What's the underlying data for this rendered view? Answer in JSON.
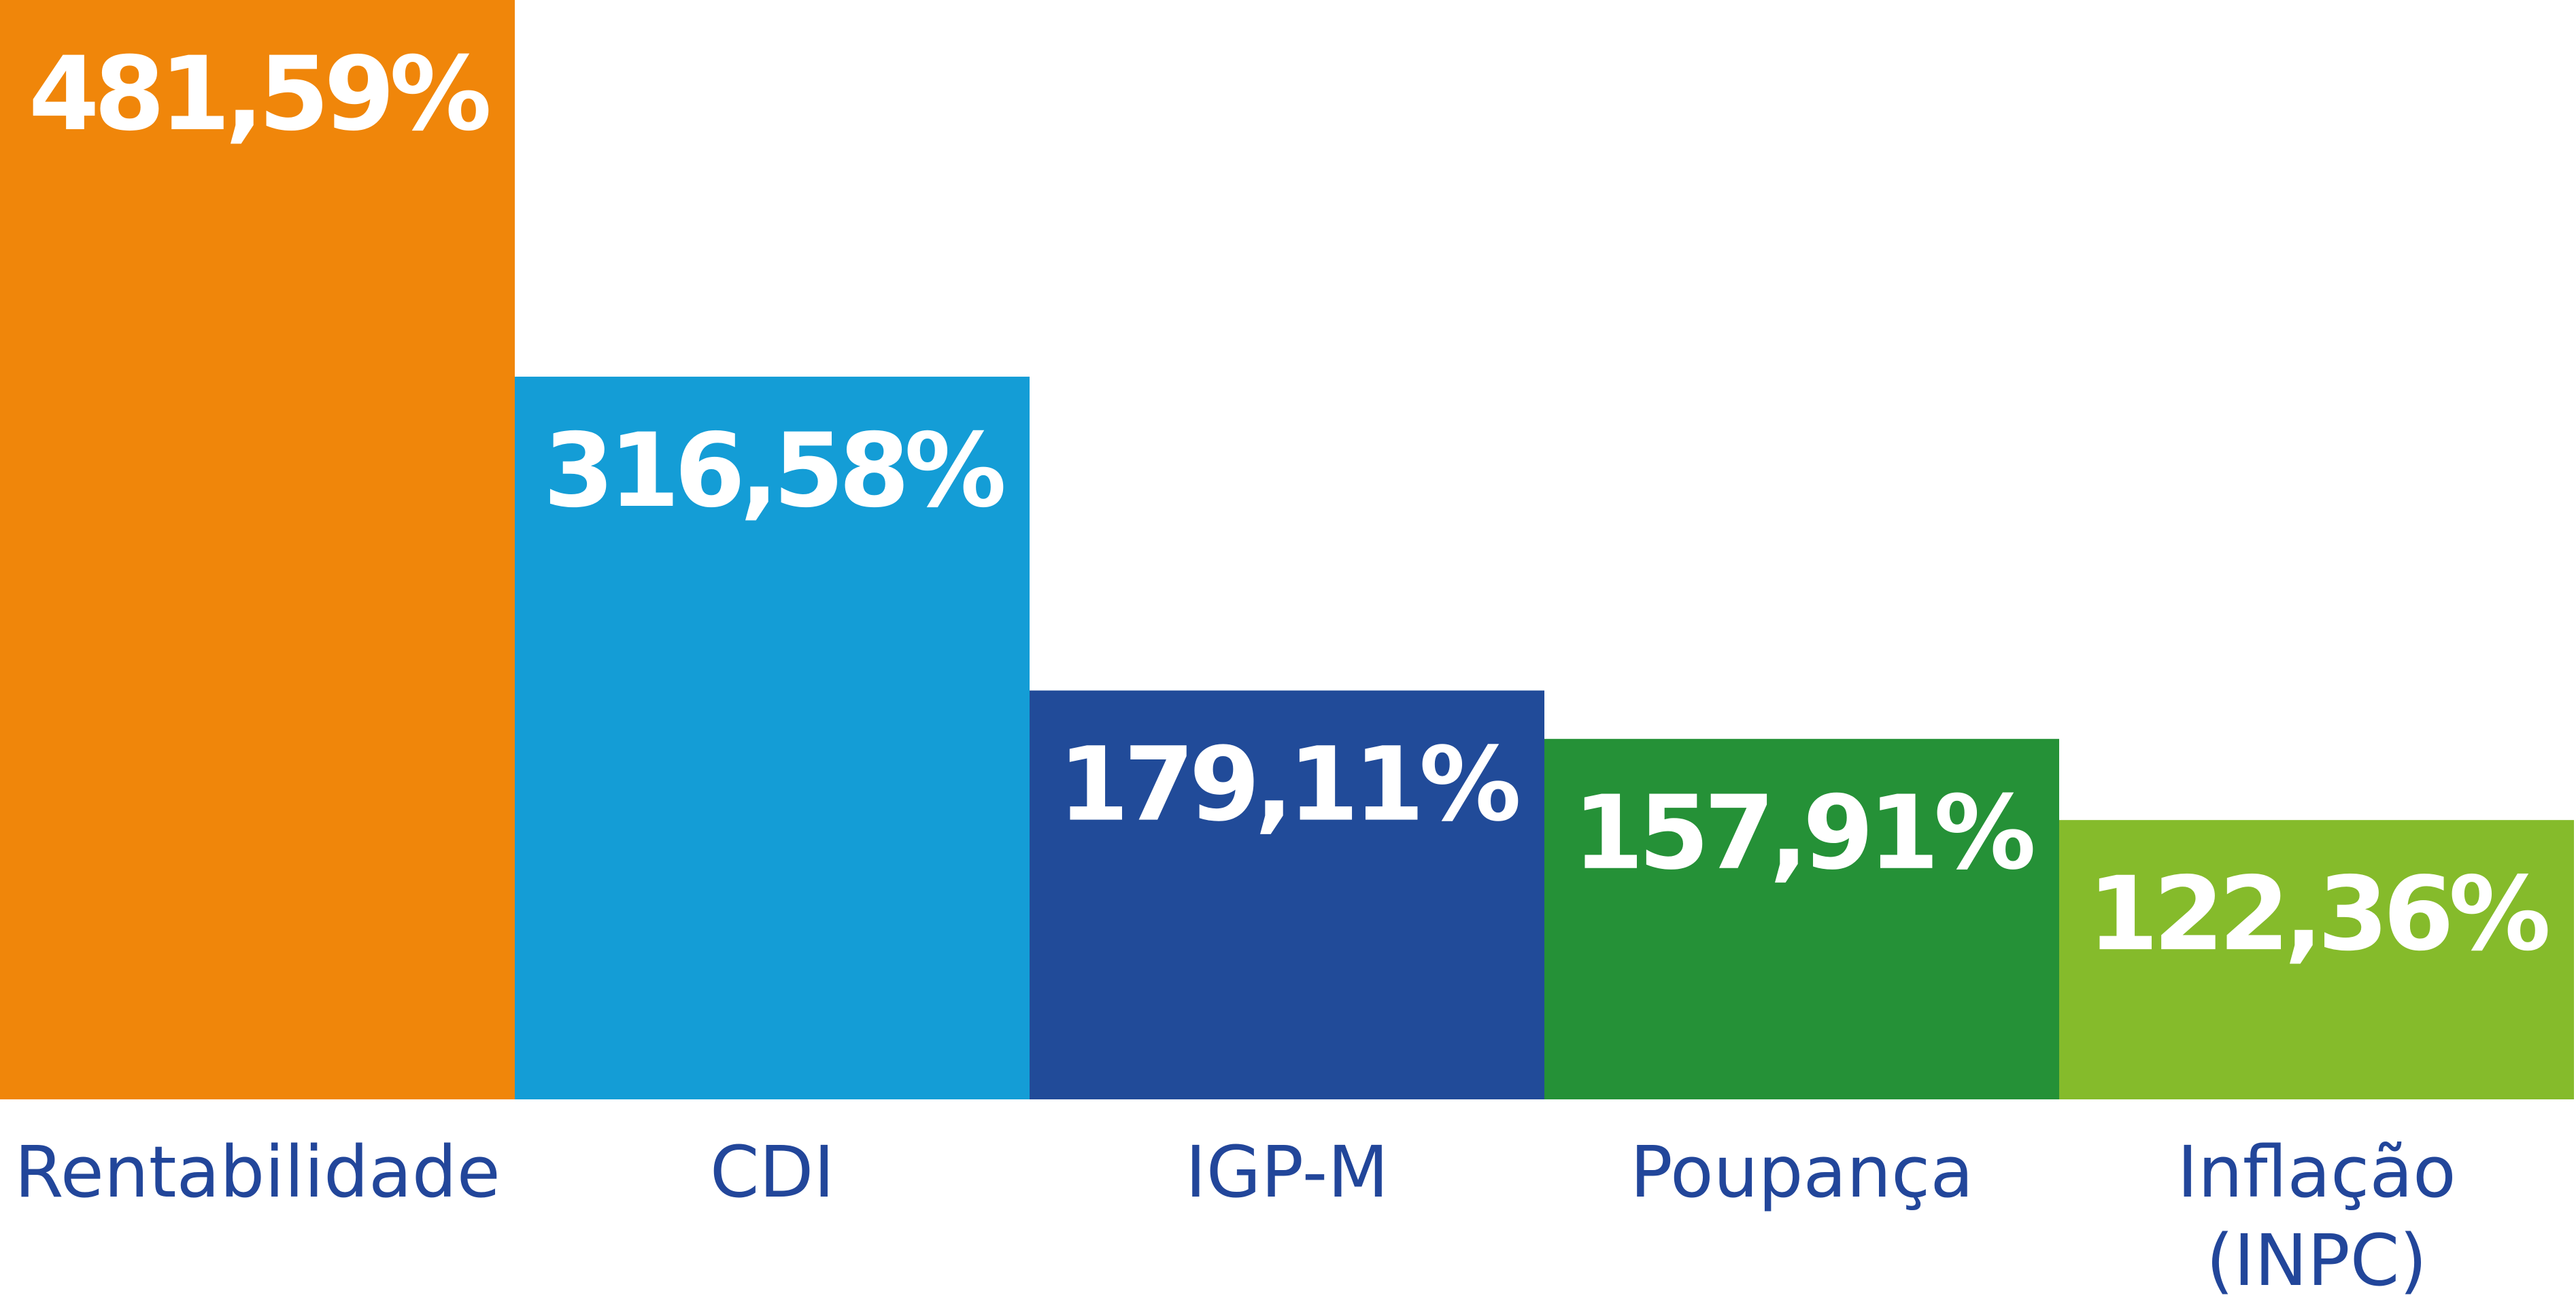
{
  "chart_data": {
    "type": "bar",
    "categories": [
      "Rentabilidade",
      "CDI",
      "IGP-M",
      "Poupança",
      "Inflação\n(INPC)"
    ],
    "values": [
      481.59,
      316.58,
      179.11,
      157.91,
      122.36
    ],
    "value_labels": [
      "481,59%",
      "316,58%",
      "179,11%",
      "157,91%",
      "122,36%"
    ],
    "bar_colors": [
      "#f0860a",
      "#149dd6",
      "#214b99",
      "#259137",
      "#85bb2b"
    ],
    "label_color": "#22469a",
    "value_label_color": "#ffffff",
    "title": "",
    "xlabel": "",
    "ylabel": "",
    "grid": false,
    "legend": "none"
  }
}
